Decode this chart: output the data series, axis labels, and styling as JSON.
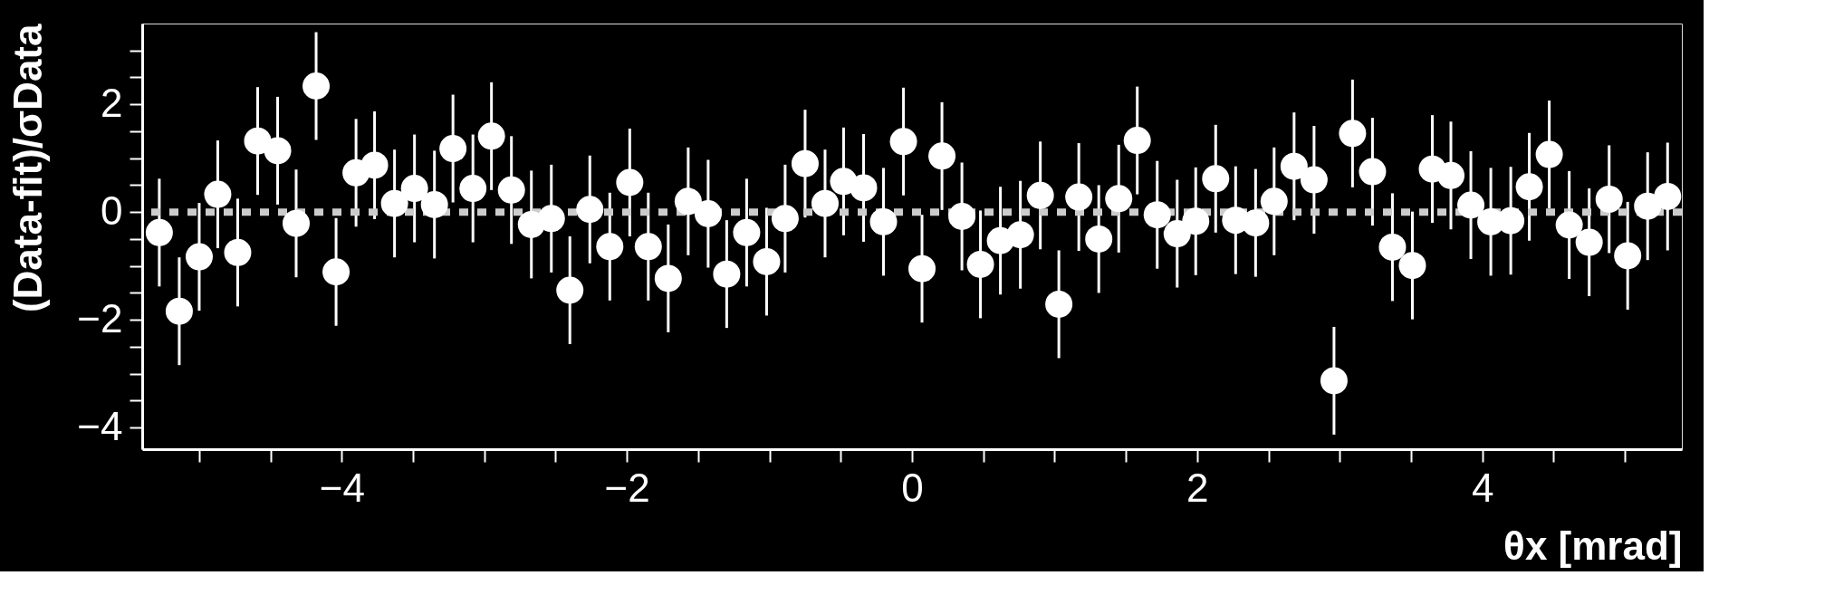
{
  "chart_data": {
    "type": "scatter",
    "xlabel": "θx [mrad]",
    "ylabel": "(Data-fit)/σData",
    "x": [
      -5.28,
      -5.14,
      -5.0,
      -4.87,
      -4.73,
      -4.59,
      -4.45,
      -4.32,
      -4.18,
      -4.04,
      -3.9,
      -3.77,
      -3.63,
      -3.49,
      -3.35,
      -3.22,
      -3.08,
      -2.95,
      -2.81,
      -2.67,
      -2.53,
      -2.4,
      -2.26,
      -2.12,
      -1.98,
      -1.85,
      -1.71,
      -1.57,
      -1.43,
      -1.3,
      -1.16,
      -1.02,
      -0.89,
      -0.75,
      -0.61,
      -0.48,
      -0.34,
      -0.2,
      -0.06,
      0.07,
      0.21,
      0.35,
      0.48,
      0.62,
      0.76,
      0.9,
      1.03,
      1.17,
      1.31,
      1.45,
      1.58,
      1.72,
      1.86,
      1.99,
      2.13,
      2.27,
      2.41,
      2.54,
      2.68,
      2.82,
      2.96,
      3.09,
      3.23,
      3.37,
      3.51,
      3.65,
      3.78,
      3.92,
      4.06,
      4.2,
      4.33,
      4.47,
      4.61,
      4.75,
      4.89,
      5.02,
      5.16,
      5.3
    ],
    "series": [
      {
        "color": "#ffffff",
        "values": [
          -0.38,
          -1.84,
          -0.83,
          0.33,
          -0.75,
          1.32,
          1.14,
          -0.21,
          2.34,
          -1.11,
          0.73,
          0.87,
          0.16,
          0.44,
          0.14,
          1.18,
          0.44,
          1.41,
          0.41,
          -0.23,
          -0.12,
          -1.45,
          0.05,
          -0.64,
          0.55,
          -0.64,
          -1.23,
          0.2,
          -0.03,
          -1.15,
          -0.38,
          -0.92,
          -0.12,
          0.9,
          0.16,
          0.57,
          0.45,
          -0.18,
          1.31,
          -1.05,
          1.04,
          -0.08,
          -0.97,
          -0.53,
          -0.42,
          0.31,
          -1.71,
          0.28,
          -0.5,
          0.25,
          1.33,
          -0.05,
          -0.4,
          -0.17,
          0.62,
          -0.15,
          -0.2,
          0.2,
          0.85,
          0.6,
          -3.13,
          1.46,
          0.75,
          -0.65,
          -0.99,
          0.8,
          0.68,
          0.13,
          -0.18,
          -0.16,
          0.47,
          1.07,
          -0.24,
          -0.56,
          0.24,
          -0.81,
          0.11,
          0.29
        ],
        "errors": [
          1,
          1,
          1,
          1,
          1,
          1,
          1,
          1,
          1,
          1,
          1,
          1,
          1,
          1,
          1,
          1,
          1,
          1,
          1,
          1,
          1,
          1,
          1,
          1,
          1,
          1,
          1,
          1,
          1,
          1,
          1,
          1,
          1,
          1,
          1,
          1,
          1,
          1,
          1,
          1,
          1,
          1,
          1,
          1,
          1,
          1,
          1,
          1,
          1,
          1,
          1,
          1,
          1,
          1,
          1,
          1,
          1,
          1,
          1,
          1,
          1,
          1,
          1,
          1,
          1,
          1,
          1,
          1,
          1,
          1,
          1,
          1,
          1,
          1,
          1,
          1,
          1,
          1
        ]
      }
    ],
    "xlim": [
      -5.4,
      5.4
    ],
    "xticks": [
      {
        "value": -5,
        "label": null
      },
      {
        "value": -4.5,
        "label": null
      },
      {
        "value": -4,
        "label": "−4"
      },
      {
        "value": -3.5,
        "label": null
      },
      {
        "value": -3,
        "label": null
      },
      {
        "value": -2.5,
        "label": null
      },
      {
        "value": -2,
        "label": "−2"
      },
      {
        "value": -1.5,
        "label": null
      },
      {
        "value": -1,
        "label": null
      },
      {
        "value": -0.5,
        "label": null
      },
      0,
      {
        "value": 0.5,
        "label": null
      },
      {
        "value": 1,
        "label": null
      },
      {
        "value": 1.5,
        "label": null
      },
      2,
      {
        "value": 2.5,
        "label": null
      },
      {
        "value": 3,
        "label": null
      },
      {
        "value": 3.5,
        "label": null
      },
      4,
      {
        "value": 4.5,
        "label": null
      },
      {
        "value": 5,
        "label": null
      }
    ],
    "ylim": [
      -4.4,
      3.5
    ],
    "yticks": [
      {
        "value": -4,
        "label": "−4"
      },
      {
        "value": -3.5,
        "label": null
      },
      {
        "value": -3,
        "label": null
      },
      {
        "value": -2.5,
        "label": null
      },
      {
        "value": -2,
        "label": "−2"
      },
      {
        "value": -1.5,
        "label": null
      },
      {
        "value": -1,
        "label": null
      },
      {
        "value": -0.5,
        "label": null
      },
      0,
      {
        "value": 0.5,
        "label": null
      },
      {
        "value": 1,
        "label": null
      },
      {
        "value": 1.5,
        "label": null
      },
      2,
      {
        "value": 2.5,
        "label": null
      },
      {
        "value": 3,
        "label": null
      }
    ],
    "ref_lines": [
      {
        "axis": "y",
        "value": 0,
        "color": "#cccccc",
        "line_style": "dotted"
      }
    ],
    "marker": "circle",
    "grid": false,
    "legend": false
  }
}
